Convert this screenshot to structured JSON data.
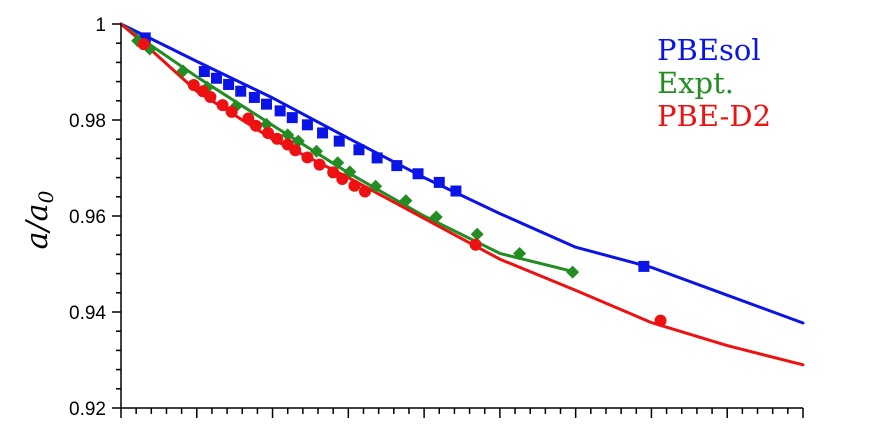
{
  "chart_data": {
    "type": "line",
    "title": "",
    "xlabel": "",
    "ylabel": "a/a0",
    "ylabel_parts": {
      "italic": "a/a",
      "subscript": "0"
    },
    "xlim": [
      0,
      45
    ],
    "ylim": [
      0.92,
      1.0
    ],
    "yticks": [
      0.92,
      0.94,
      0.96,
      0.98,
      1.0
    ],
    "ytick_labels": [
      "0.92",
      "0.94",
      "0.96",
      "0.98",
      "1"
    ],
    "xticks": [
      0,
      5,
      10,
      15,
      20,
      25,
      30,
      35,
      40,
      45
    ],
    "x_tick_labels_shown": false,
    "grid": false,
    "legend_position": "top-right",
    "series": [
      {
        "name": "PBEsol",
        "color": "#0a14e6",
        "marker": "square",
        "curve": [
          [
            0,
            1.0
          ],
          [
            2,
            0.9969
          ],
          [
            5,
            0.9922
          ],
          [
            10,
            0.9846
          ],
          [
            15,
            0.9762
          ],
          [
            20,
            0.968
          ],
          [
            25,
            0.9605
          ],
          [
            30,
            0.9535
          ],
          [
            35,
            0.9493
          ],
          [
            40,
            0.9435
          ],
          [
            45,
            0.9377
          ]
        ],
        "markers": [
          [
            1.6,
            0.9971
          ],
          [
            5.5,
            0.9901
          ],
          [
            6.3,
            0.9887
          ],
          [
            7.1,
            0.9874
          ],
          [
            7.9,
            0.986
          ],
          [
            8.8,
            0.9847
          ],
          [
            9.6,
            0.9833
          ],
          [
            10.5,
            0.9819
          ],
          [
            11.3,
            0.9805
          ],
          [
            12.3,
            0.979
          ],
          [
            13.3,
            0.9773
          ],
          [
            14.4,
            0.9756
          ],
          [
            15.7,
            0.9738
          ],
          [
            16.9,
            0.9721
          ],
          [
            18.2,
            0.9705
          ],
          [
            19.6,
            0.9688
          ],
          [
            21.0,
            0.967
          ],
          [
            22.1,
            0.9652
          ],
          [
            34.5,
            0.9495
          ]
        ]
      },
      {
        "name": "Expt.",
        "color": "#238c23",
        "marker": "diamond",
        "curve": [
          [
            0,
            1.0
          ],
          [
            2,
            0.9955
          ],
          [
            5,
            0.989
          ],
          [
            10,
            0.9789
          ],
          [
            15,
            0.969
          ],
          [
            20,
            0.96
          ],
          [
            25,
            0.9522
          ],
          [
            30,
            0.9483
          ]
        ],
        "markers": [
          [
            1.1,
            0.9965
          ],
          [
            1.9,
            0.9948
          ],
          [
            4.1,
            0.9902
          ],
          [
            5.7,
            0.9868
          ],
          [
            7.6,
            0.9829
          ],
          [
            9.6,
            0.9791
          ],
          [
            11.0,
            0.9769
          ],
          [
            11.7,
            0.9756
          ],
          [
            12.9,
            0.9735
          ],
          [
            14.3,
            0.9711
          ],
          [
            15.1,
            0.9692
          ],
          [
            16.8,
            0.9662
          ],
          [
            18.8,
            0.9632
          ],
          [
            20.8,
            0.9598
          ],
          [
            23.5,
            0.9562
          ],
          [
            26.3,
            0.9522
          ],
          [
            29.8,
            0.9483
          ]
        ]
      },
      {
        "name": "PBE-D2",
        "color": "#ee1111",
        "marker": "circle",
        "curve": [
          [
            0,
            1.0
          ],
          [
            1.5,
            0.996
          ],
          [
            5,
            0.986
          ],
          [
            10,
            0.976
          ],
          [
            15,
            0.968
          ],
          [
            20,
            0.9595
          ],
          [
            25,
            0.951
          ],
          [
            30,
            0.9445
          ],
          [
            35,
            0.9378
          ],
          [
            40,
            0.933
          ],
          [
            45,
            0.929
          ]
        ],
        "markers": [
          [
            1.5,
            0.9958
          ],
          [
            4.8,
            0.9873
          ],
          [
            5.4,
            0.986
          ],
          [
            5.9,
            0.9848
          ],
          [
            6.7,
            0.9831
          ],
          [
            7.3,
            0.9817
          ],
          [
            8.4,
            0.9803
          ],
          [
            8.9,
            0.9788
          ],
          [
            9.7,
            0.9773
          ],
          [
            10.3,
            0.9761
          ],
          [
            11.0,
            0.9749
          ],
          [
            11.5,
            0.9737
          ],
          [
            12.3,
            0.9722
          ],
          [
            13.1,
            0.9707
          ],
          [
            14.0,
            0.9691
          ],
          [
            14.6,
            0.9677
          ],
          [
            15.4,
            0.9663
          ],
          [
            16.1,
            0.9651
          ],
          [
            23.4,
            0.954
          ],
          [
            35.6,
            0.9382
          ]
        ]
      }
    ]
  }
}
